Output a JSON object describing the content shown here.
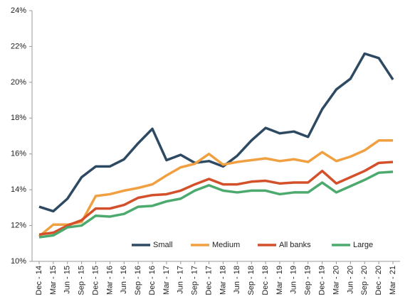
{
  "chart_data": {
    "type": "line",
    "categories": [
      "Dec - 14",
      "Mar - 15",
      "Jun - 15",
      "Sep - 15",
      "Dec - 15",
      "Mar - 16",
      "Jun - 16",
      "Sep - 16",
      "Dec - 16",
      "Mar - 17",
      "Jun - 17",
      "Sep - 17",
      "Dec - 17",
      "Mar - 18",
      "Jun - 18",
      "Sep - 18",
      "Dec - 18",
      "Mar - 19",
      "Jun - 19",
      "Sep - 19",
      "Dec - 19",
      "Mar - 20",
      "Jun - 20",
      "Sep - 20",
      "Dec - 20",
      "Mar - 21"
    ],
    "series": [
      {
        "name": "Small",
        "color": "#2e4a62",
        "values": [
          13.05,
          12.8,
          13.5,
          14.7,
          15.3,
          15.3,
          15.7,
          16.6,
          17.4,
          15.65,
          15.95,
          15.5,
          15.6,
          15.3,
          15.9,
          16.75,
          17.45,
          17.15,
          17.25,
          16.95,
          18.5,
          19.6,
          20.2,
          21.6,
          21.35,
          20.15
        ]
      },
      {
        "name": "Medium",
        "color": "#f0a040",
        "values": [
          11.4,
          12.05,
          12.05,
          12.2,
          13.65,
          13.75,
          13.95,
          14.1,
          14.3,
          14.8,
          15.25,
          15.45,
          16.0,
          15.4,
          15.55,
          15.65,
          15.75,
          15.6,
          15.7,
          15.55,
          16.1,
          15.6,
          15.85,
          16.2,
          16.75,
          16.75
        ]
      },
      {
        "name": "All banks",
        "color": "#d3502a",
        "values": [
          11.5,
          11.6,
          12.0,
          12.3,
          12.95,
          12.95,
          13.15,
          13.55,
          13.7,
          13.75,
          13.95,
          14.3,
          14.6,
          14.3,
          14.3,
          14.45,
          14.5,
          14.35,
          14.4,
          14.4,
          15.05,
          14.35,
          14.7,
          15.05,
          15.5,
          15.55
        ]
      },
      {
        "name": "Large",
        "color": "#4caa6e",
        "values": [
          11.35,
          11.45,
          11.9,
          12.0,
          12.55,
          12.5,
          12.65,
          13.05,
          13.1,
          13.35,
          13.5,
          13.95,
          14.25,
          13.95,
          13.85,
          13.95,
          13.95,
          13.75,
          13.85,
          13.85,
          14.4,
          13.85,
          14.2,
          14.55,
          14.95,
          15.0
        ]
      }
    ],
    "ylim": [
      10,
      24
    ],
    "yticks": [
      {
        "value": 10,
        "label": "10%"
      },
      {
        "value": 12,
        "label": "12%"
      },
      {
        "value": 14,
        "label": "14%"
      },
      {
        "value": 16,
        "label": "16%"
      },
      {
        "value": 18,
        "label": "18%"
      },
      {
        "value": 20,
        "label": "20%"
      },
      {
        "value": 22,
        "label": "22%"
      },
      {
        "value": 24,
        "label": "24%"
      }
    ],
    "grid": false,
    "legend": "bottom"
  }
}
